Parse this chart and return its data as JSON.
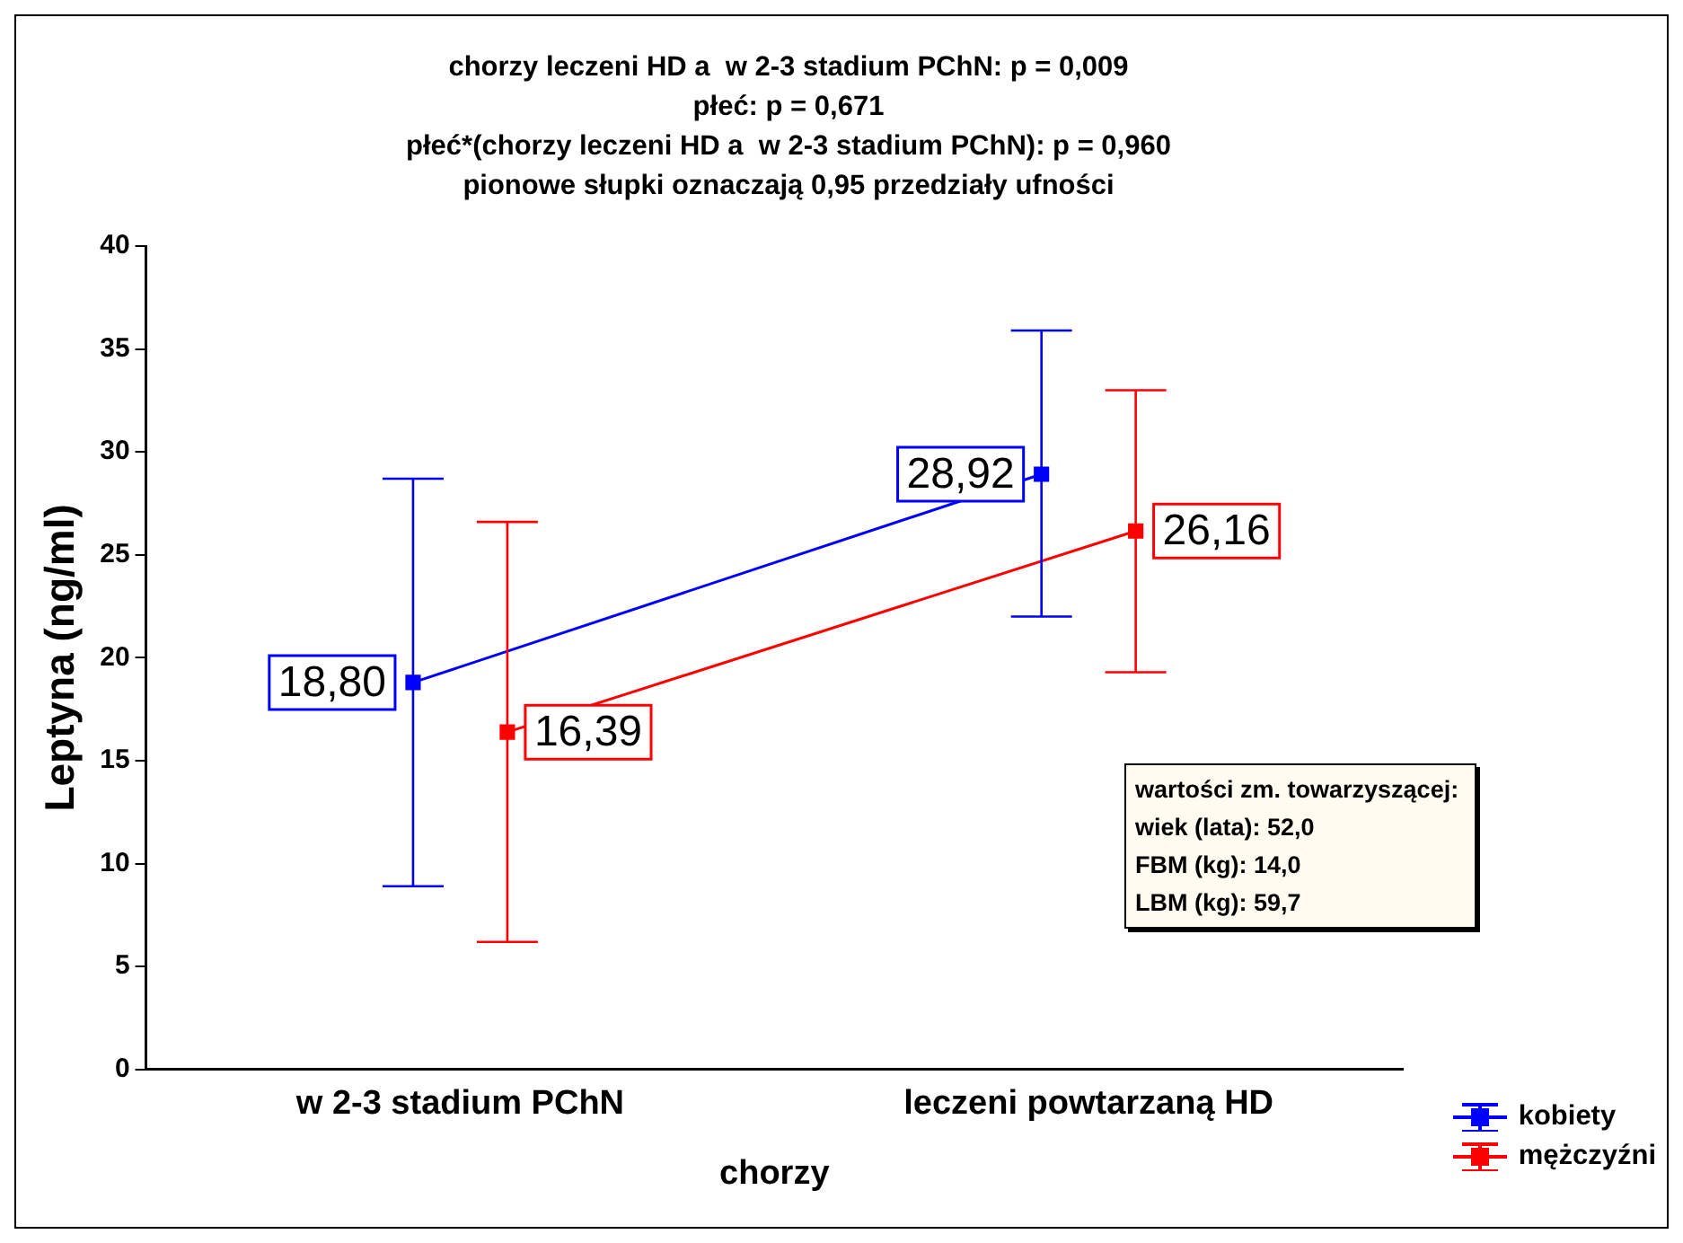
{
  "chart_data": {
    "type": "line",
    "title": "chorzy leczeni HD a  w 2-3 stadium PChN: p = 0,009\npłeć: p = 0,671\npłeć*(chorzy leczeni HD a  w 2-3 stadium PChN): p = 0,960\npionowe słupki oznaczają 0,95 przedziały ufności",
    "xlabel": "chorzy",
    "ylabel": "Leptyna (ng/ml)",
    "categories": [
      "w 2-3 stadium PChN",
      "leczeni powtarzaną HD"
    ],
    "series": [
      {
        "name": "kobiety",
        "color": "#0000ff",
        "values": [
          18.8,
          28.92
        ],
        "errors": [
          [
            8.9,
            28.7
          ],
          [
            22.0,
            35.9
          ]
        ],
        "value_labels": [
          "18,80",
          "28,92"
        ]
      },
      {
        "name": "mężczyźni",
        "color": "#ff0000",
        "values": [
          16.39,
          26.16
        ],
        "errors": [
          [
            6.2,
            26.6
          ],
          [
            19.3,
            33.0
          ]
        ],
        "value_labels": [
          "16,39",
          "26,16"
        ]
      }
    ],
    "ylim": [
      0,
      40
    ],
    "yticks": [
      0,
      5,
      10,
      15,
      20,
      25,
      30,
      35,
      40
    ],
    "annotations": [
      "wartości zm. towarzyszącej:",
      "wiek (lata): 52,0",
      "FBM (kg): 14,0",
      "LBM (kg): 59,7"
    ],
    "legend": "bottom right",
    "marker": "square",
    "line_style": "solid",
    "grid": false
  }
}
